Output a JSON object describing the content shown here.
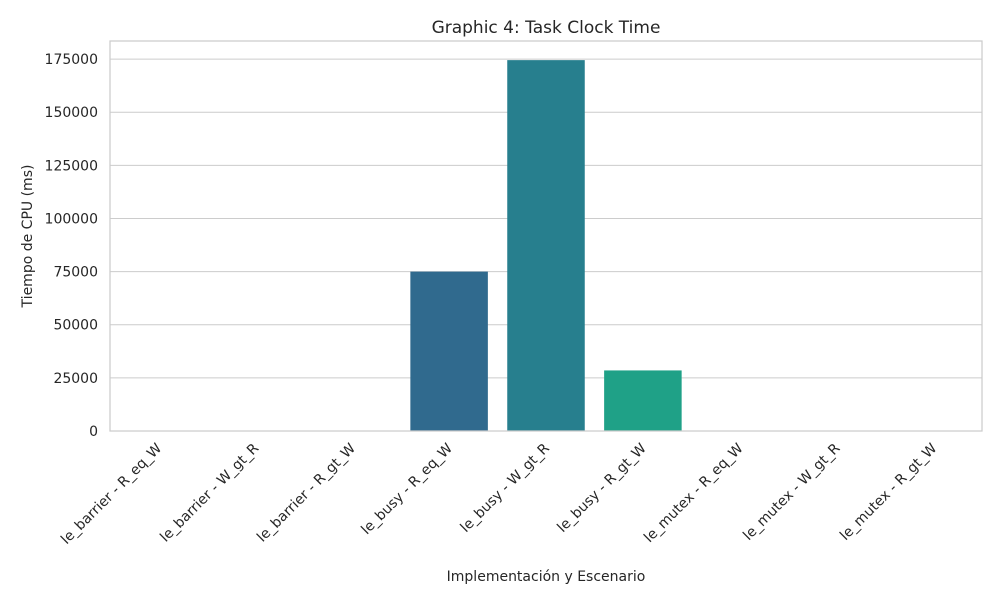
{
  "chart_data": {
    "type": "bar",
    "title": "Graphic 4: Task Clock Time",
    "xlabel": "Implementación y Escenario",
    "ylabel": "Tiempo de CPU (ms)",
    "categories": [
      "le_barrier - R_eq_W",
      "le_barrier - W_gt_R",
      "le_barrier - R_gt_W",
      "le_busy - R_eq_W",
      "le_busy - W_gt_R",
      "le_busy - R_gt_W",
      "le_mutex - R_eq_W",
      "le_mutex - W_gt_R",
      "le_mutex - R_gt_W"
    ],
    "values": [
      120,
      110,
      130,
      75000,
      174500,
      28500,
      95,
      90,
      100
    ],
    "colors": [
      "#46327e",
      "#3e4989",
      "#365c8d",
      "#306a8e",
      "#277f8e",
      "#1fa187",
      "#35b779",
      "#6ece58",
      "#b5de2b"
    ],
    "yticks": [
      0,
      25000,
      50000,
      75000,
      100000,
      125000,
      150000,
      175000
    ],
    "ylim": [
      0,
      183500
    ],
    "grid": true
  }
}
